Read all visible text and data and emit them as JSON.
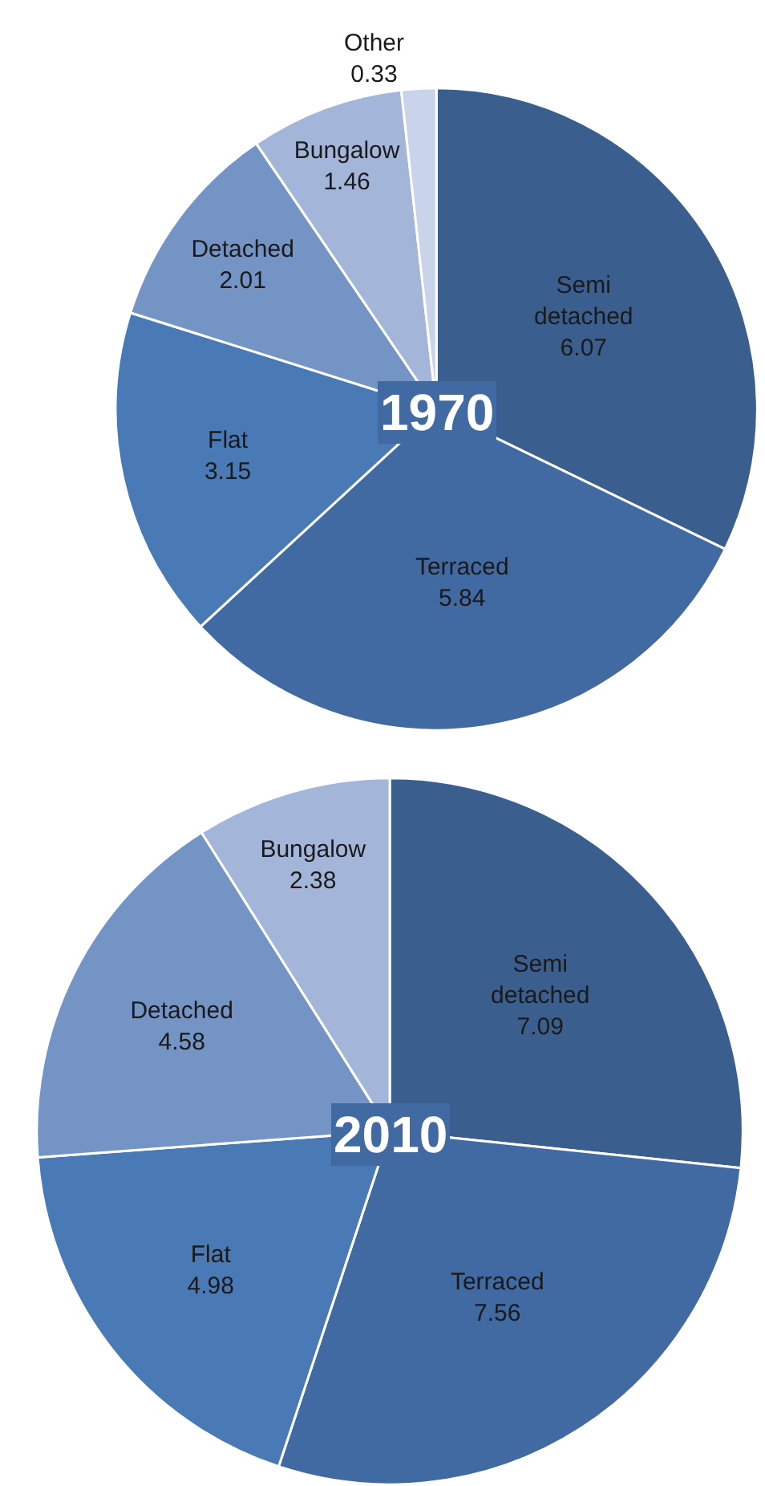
{
  "chart_data": [
    {
      "type": "pie",
      "title": "1970",
      "categories": [
        "Semi detached",
        "Terraced",
        "Flat",
        "Detached",
        "Bungalow",
        "Other"
      ],
      "values": [
        6.07,
        5.84,
        3.15,
        2.01,
        1.46,
        0.33
      ],
      "colors": [
        "#3a5f8f",
        "#4169a2",
        "#4a7ab6",
        "#7494c6",
        "#a3b5d8",
        "#c9d4ea"
      ],
      "data_labels": true,
      "legend": false
    },
    {
      "type": "pie",
      "title": "2010",
      "categories": [
        "Semi detached",
        "Terraced",
        "Flat",
        "Detached",
        "Bungalow"
      ],
      "values": [
        7.09,
        7.56,
        4.98,
        4.58,
        2.38
      ],
      "colors": [
        "#3a5f8f",
        "#4169a2",
        "#4a7ab6",
        "#7494c6",
        "#a3b5d8"
      ],
      "data_labels": true,
      "legend": false
    }
  ]
}
